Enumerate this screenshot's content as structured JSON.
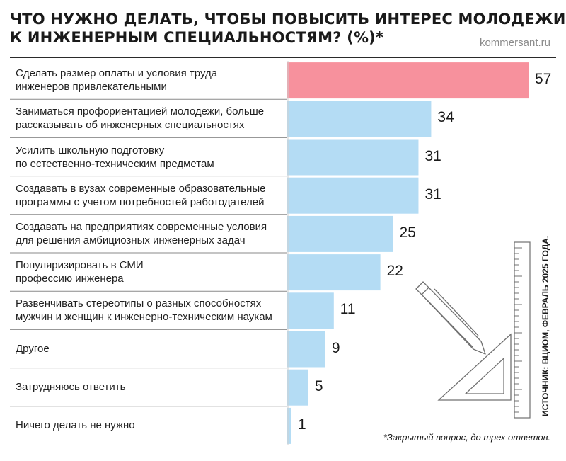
{
  "header": {
    "title_lines": [
      "ЧТО НУЖНО ДЕЛАТЬ, ЧТОБЫ ПОВЫСИТЬ ИНТЕРЕС МОЛОДЕЖИ",
      "К ИНЖЕНЕРНЫМ СПЕЦИАЛЬНОСТЯМ? (%)*"
    ],
    "brand": "kommersant.ru"
  },
  "source_note": "ИСТОЧНИК: ВЦИОМ, ФЕВРАЛЬ 2025 ГОДА.",
  "footnote": "*Закрытый вопрос, до трех ответов.",
  "colors": {
    "highlight": "#f7919d",
    "bar": "#b4dcf4",
    "separator": "#8a8a8a",
    "drawing": "#707070"
  },
  "icons": [
    "pencil-icon",
    "set-square-icon",
    "ruler-icon"
  ],
  "chart_data": {
    "type": "bar",
    "orientation": "horizontal",
    "categories": [
      [
        "Сделать размер оплаты и условия труда",
        "инженеров привлекательными"
      ],
      [
        "Заниматься профориентацией молодежи, больше",
        "рассказывать об инженерных специальностях"
      ],
      [
        "Усилить школьную подготовку",
        "по естественно-техническим предметам"
      ],
      [
        "Создавать в вузах современные образовательные",
        "программы с учетом потребностей работодателей"
      ],
      [
        "Создавать на предприятиях современные условия",
        "для решения амбициозных инженерных задач"
      ],
      [
        "Популяризировать в СМИ",
        "профессию инженера"
      ],
      [
        "Развенчивать стереотипы о разных способностях",
        "мужчин и женщин к инженерно-техническим наукам"
      ],
      [
        "Другое"
      ],
      [
        "Затрудняюсь ответить"
      ],
      [
        "Ничего делать не нужно"
      ]
    ],
    "values": [
      57,
      34,
      31,
      31,
      25,
      22,
      11,
      9,
      5,
      1
    ],
    "highlight_index": 0,
    "xlim": [
      0,
      57
    ],
    "grid": false,
    "legend": "none"
  }
}
